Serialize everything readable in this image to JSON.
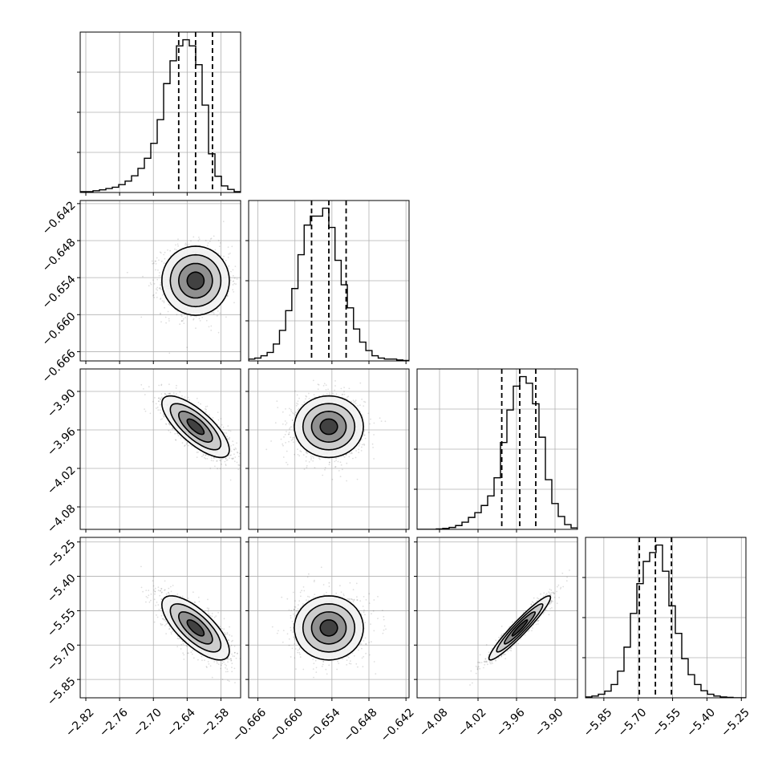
{
  "chart_data": {
    "type": "corner",
    "grid": true,
    "parameters": [
      {
        "mean": -2.625,
        "sd": 0.03,
        "range": [
          -2.83,
          -2.545
        ],
        "ticks": [
          -2.82,
          -2.76,
          -2.7,
          -2.64,
          -2.58
        ],
        "tick_labels": [
          "−2.82",
          "−2.76",
          "−2.70",
          "−2.64",
          "−2.58"
        ],
        "quantiles": [
          -2.655,
          -2.625,
          -2.595
        ],
        "hist": {
          "edges": [
            -2.83,
            -2.8186,
            -2.8072,
            -2.7958,
            -2.7844,
            -2.773,
            -2.7616,
            -2.7502,
            -2.7388,
            -2.7274,
            -2.716,
            -2.7046,
            -2.6932,
            -2.6818,
            -2.6704,
            -2.659,
            -2.6476,
            -2.6362,
            -2.6248,
            -2.6134,
            -2.602,
            -2.5906,
            -2.5792,
            -2.5678,
            -2.5564,
            -2.545
          ],
          "counts": [
            2,
            2,
            4,
            6,
            9,
            12,
            18,
            26,
            38,
            55,
            78,
            112,
            166,
            248,
            300,
            334,
            348,
            334,
            291,
            199,
            88,
            37,
            15,
            7,
            2
          ]
        }
      },
      {
        "mean": -0.6545,
        "sd": 0.0028,
        "range": [
          -0.6675,
          -0.6415
        ],
        "ticks": [
          -0.666,
          -0.66,
          -0.654,
          -0.648,
          -0.642
        ],
        "tick_labels": [
          "−0.666",
          "−0.660",
          "−0.654",
          "−0.648",
          "−0.642"
        ],
        "ytick_labels": [
          "−0.642",
          "−0.648",
          "−0.654",
          "−0.660",
          "−0.666"
        ],
        "quantiles": [
          -0.6573,
          -0.6545,
          -0.6517
        ],
        "hist": {
          "edges": [
            -0.6675,
            -0.6665,
            -0.6655,
            -0.6645,
            -0.6635,
            -0.6625,
            -0.6615,
            -0.6605,
            -0.6595,
            -0.6585,
            -0.6575,
            -0.6565,
            -0.6555,
            -0.6545,
            -0.6535,
            -0.6525,
            -0.6515,
            -0.6505,
            -0.6495,
            -0.6485,
            -0.6475,
            -0.6465,
            -0.6455,
            -0.6435,
            -0.6425,
            -0.6415
          ],
          "counts": [
            4,
            6,
            11,
            18,
            36,
            65,
            107,
            154,
            226,
            289,
            308,
            308,
            325,
            284,
            214,
            162,
            113,
            68,
            40,
            22,
            11,
            6,
            4,
            2,
            1
          ]
        }
      },
      {
        "mean": -3.955,
        "sd": 0.024,
        "range": [
          -4.115,
          -3.865
        ],
        "ticks": [
          -4.08,
          -4.02,
          -3.96,
          -3.9
        ],
        "tick_labels": [
          "−4.08",
          "−4.02",
          "−3.96",
          "−3.90"
        ],
        "ytick_labels": [
          "−3.90",
          "−3.96",
          "−4.02",
          "−4.08"
        ],
        "quantiles": [
          -3.983,
          -3.955,
          -3.93
        ],
        "hist": {
          "edges": [
            -4.115,
            -4.105,
            -4.095,
            -4.085,
            -4.075,
            -4.065,
            -4.055,
            -4.045,
            -4.035,
            -4.025,
            -4.015,
            -4.005,
            -3.995,
            -3.985,
            -3.975,
            -3.965,
            -3.955,
            -3.945,
            -3.935,
            -3.925,
            -3.915,
            -3.905,
            -3.895,
            -3.885,
            -3.875,
            -3.865
          ],
          "counts": [
            0,
            0,
            0,
            1,
            2,
            4,
            8,
            15,
            25,
            35,
            50,
            70,
            108,
            182,
            250,
            300,
            320,
            306,
            263,
            193,
            104,
            54,
            27,
            10,
            3
          ]
        }
      },
      {
        "mean": -5.625,
        "sd": 0.07,
        "range": [
          -5.93,
          -5.23
        ],
        "ticks": [
          -5.85,
          -5.7,
          -5.55,
          -5.4,
          -5.25
        ],
        "tick_labels": [
          "−5.85",
          "−5.70",
          "−5.55",
          "−5.40",
          "−5.25"
        ],
        "ytick_labels": [
          "−5.25",
          "−5.40",
          "−5.55",
          "−5.70",
          "−5.85"
        ],
        "quantiles": [
          -5.695,
          -5.625,
          -5.555
        ],
        "hist": {
          "edges": [
            -5.93,
            -5.902,
            -5.874,
            -5.846,
            -5.818,
            -5.79,
            -5.762,
            -5.734,
            -5.706,
            -5.678,
            -5.65,
            -5.622,
            -5.594,
            -5.566,
            -5.538,
            -5.51,
            -5.482,
            -5.454,
            -5.426,
            -5.398,
            -5.37,
            -5.342,
            -5.314,
            -5.286,
            -5.258,
            -5.23
          ],
          "counts": [
            2,
            4,
            8,
            15,
            30,
            60,
            114,
            190,
            257,
            307,
            327,
            344,
            285,
            207,
            145,
            88,
            52,
            30,
            16,
            8,
            4,
            2,
            1,
            0,
            0
          ]
        }
      }
    ],
    "correlations": [
      {
        "pair": [
          0,
          1
        ],
        "r": 0.0
      },
      {
        "pair": [
          0,
          2
        ],
        "r": -0.75
      },
      {
        "pair": [
          1,
          2
        ],
        "r": 0.0
      },
      {
        "pair": [
          0,
          3
        ],
        "r": -0.72
      },
      {
        "pair": [
          1,
          3
        ],
        "r": 0.0
      },
      {
        "pair": [
          2,
          3
        ],
        "r": 0.95
      }
    ],
    "contour_levels_sigma": [
      0.5,
      1.0,
      1.5,
      2.0
    ]
  }
}
